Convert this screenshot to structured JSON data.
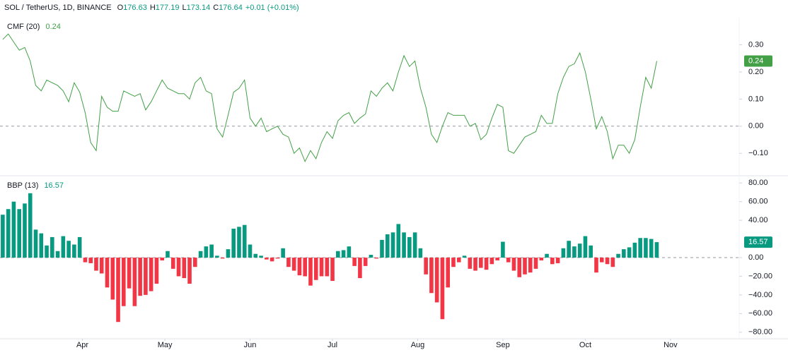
{
  "header": {
    "symbol": "SOL / TetherUS, 1D, BINANCE",
    "ohlc": [
      {
        "key": "O",
        "value": "176.63"
      },
      {
        "key": "H",
        "value": "177.19"
      },
      {
        "key": "L",
        "value": "173.14"
      },
      {
        "key": "C",
        "value": "176.64"
      }
    ],
    "change": "+0.01 (+0.01%)"
  },
  "chart_data": [
    {
      "type": "line",
      "title": "CMF (20)",
      "color": "#43a047",
      "baseline": 0,
      "x": [
        -29,
        -27,
        -25,
        -23,
        -21,
        -19,
        -17,
        -15,
        -13,
        -11,
        -9,
        -7,
        -5,
        -3,
        -1,
        1,
        3,
        5,
        7,
        9,
        11,
        13,
        15,
        17,
        19,
        21,
        23,
        25,
        27,
        29,
        31,
        33,
        35,
        37,
        39,
        41,
        43,
        45,
        47,
        49,
        51,
        53,
        55,
        57,
        59,
        61,
        63,
        65,
        67,
        69,
        71,
        73,
        75,
        77,
        79,
        81,
        83,
        85,
        87,
        89,
        91,
        93,
        95,
        97,
        99,
        101,
        103,
        105,
        107,
        109,
        111,
        113,
        115,
        117,
        119,
        121,
        123,
        125,
        127,
        129,
        131,
        133,
        135,
        137,
        139,
        141,
        143,
        145,
        147,
        149,
        151,
        153,
        155,
        157,
        159,
        161,
        163,
        165,
        167,
        169,
        171,
        173,
        175,
        177,
        179,
        181,
        183,
        185,
        187,
        189,
        191,
        193,
        195,
        197,
        199,
        201,
        203,
        205,
        207,
        209
      ],
      "values": [
        0.32,
        0.34,
        0.31,
        0.28,
        0.29,
        0.24,
        0.15,
        0.13,
        0.17,
        0.16,
        0.15,
        0.13,
        0.09,
        0.16,
        0.125,
        0.05,
        -0.06,
        -0.09,
        0.11,
        0.07,
        0.055,
        0.055,
        0.13,
        0.12,
        0.11,
        0.12,
        0.06,
        0.09,
        0.13,
        0.17,
        0.14,
        0.13,
        0.12,
        0.12,
        0.1,
        0.16,
        0.18,
        0.13,
        0.12,
        -0.01,
        -0.04,
        0.04,
        0.125,
        0.14,
        0.17,
        0.03,
        0.0,
        0.03,
        -0.02,
        -0.01,
        0.0,
        -0.03,
        -0.04,
        -0.1,
        -0.08,
        -0.13,
        -0.09,
        -0.12,
        -0.06,
        -0.02,
        -0.045,
        0.02,
        0.04,
        0.05,
        0.01,
        0.03,
        0.045,
        0.13,
        0.11,
        0.14,
        0.16,
        0.13,
        0.2,
        0.26,
        0.22,
        0.24,
        0.14,
        0.07,
        -0.03,
        -0.06,
        0.0,
        0.05,
        0.04,
        0.04,
        0.04,
        0.0,
        0.01,
        -0.05,
        -0.03,
        0.03,
        0.08,
        0.07,
        -0.09,
        -0.1,
        -0.07,
        -0.04,
        -0.03,
        -0.02,
        0.04,
        0.01,
        0.01,
        0.12,
        0.18,
        0.22,
        0.23,
        0.27,
        0.2,
        0.1,
        -0.01,
        0.035,
        -0.02,
        -0.12,
        -0.07,
        -0.07,
        -0.1,
        -0.05,
        0.07,
        0.18,
        0.14,
        0.24
      ],
      "last_label": "0.24",
      "xlim": [
        -30,
        239
      ],
      "ylim": [
        -0.18,
        0.4
      ],
      "yticks": [
        {
          "value": 0.3,
          "label": "0.30"
        },
        {
          "value": 0.2,
          "label": "0.20"
        },
        {
          "value": 0.1,
          "label": "0.10"
        },
        {
          "value": 0,
          "label": "0.00"
        },
        {
          "value": -0.1,
          "label": "−0.10"
        }
      ]
    },
    {
      "type": "bar",
      "title": "BBP (13)",
      "colors": {
        "positive": "#089981",
        "negative": "#f23645"
      },
      "baseline": 0,
      "x": [
        -29,
        -27,
        -25,
        -23,
        -21,
        -19,
        -17,
        -15,
        -13,
        -11,
        -9,
        -7,
        -5,
        -3,
        -1,
        1,
        3,
        5,
        7,
        9,
        11,
        13,
        15,
        17,
        19,
        21,
        23,
        25,
        27,
        29,
        31,
        33,
        35,
        37,
        39,
        41,
        43,
        45,
        47,
        49,
        51,
        53,
        55,
        57,
        59,
        61,
        63,
        65,
        67,
        69,
        71,
        73,
        75,
        77,
        79,
        81,
        83,
        85,
        87,
        89,
        91,
        93,
        95,
        97,
        99,
        101,
        103,
        105,
        107,
        109,
        111,
        113,
        115,
        117,
        119,
        121,
        123,
        125,
        127,
        129,
        131,
        133,
        135,
        137,
        139,
        141,
        143,
        145,
        147,
        149,
        151,
        153,
        155,
        157,
        159,
        161,
        163,
        165,
        167,
        169,
        171,
        173,
        175,
        177,
        179,
        181,
        183,
        185,
        187,
        189,
        191,
        193,
        195,
        197,
        199,
        201,
        203,
        205,
        207,
        209
      ],
      "values": [
        46,
        52,
        60,
        52,
        58,
        69,
        30,
        26,
        13,
        22,
        7,
        23,
        18,
        14,
        22,
        -5,
        -6,
        -14,
        -17,
        -32,
        -45,
        -69,
        -52,
        -33,
        -52,
        -41,
        -40,
        -36,
        -28,
        -3,
        7,
        -12,
        -20,
        -22,
        -28,
        -10,
        7,
        12,
        14,
        2,
        -1,
        9,
        31,
        33,
        35,
        14,
        4,
        2,
        -2,
        -4,
        -1,
        10,
        -10,
        -14,
        -19,
        -20,
        -30,
        -24,
        -20,
        -20,
        -25,
        7,
        8,
        12,
        -9,
        -22,
        -9,
        3,
        -1,
        19,
        25,
        27,
        36,
        27,
        22,
        27,
        10,
        -18,
        -38,
        -48,
        -66,
        -32,
        -10,
        -5,
        2,
        -12,
        -14,
        -11,
        -13,
        -7,
        -3,
        17,
        -5,
        -14,
        -21,
        -18,
        -16,
        -12,
        -3,
        4,
        -7,
        -6,
        10,
        18,
        12,
        15,
        23,
        13,
        -16,
        -5,
        -7,
        -10,
        4,
        9,
        11,
        16,
        21,
        21,
        20,
        16.57
      ],
      "last_label": "16.57",
      "xlim": [
        -30,
        239
      ],
      "ylim": [
        -87,
        87
      ],
      "yticks": [
        {
          "value": 80,
          "label": "80.00"
        },
        {
          "value": 60,
          "label": "60.00"
        },
        {
          "value": 40,
          "label": "40.00"
        },
        {
          "value": 0,
          "label": "0.00"
        },
        {
          "value": -20,
          "label": "−20.00"
        },
        {
          "value": -40,
          "label": "−40.00"
        },
        {
          "value": -60,
          "label": "−60.00"
        },
        {
          "value": -80,
          "label": "−80.00"
        }
      ],
      "xticks": [
        {
          "value": 0,
          "label": "Apr"
        },
        {
          "value": 30,
          "label": "May"
        },
        {
          "value": 61,
          "label": "Jun"
        },
        {
          "value": 91,
          "label": "Jul"
        },
        {
          "value": 122,
          "label": "Aug"
        },
        {
          "value": 153,
          "label": "Sep"
        },
        {
          "value": 183,
          "label": "Oct"
        },
        {
          "value": 214,
          "label": "Nov"
        }
      ]
    }
  ]
}
